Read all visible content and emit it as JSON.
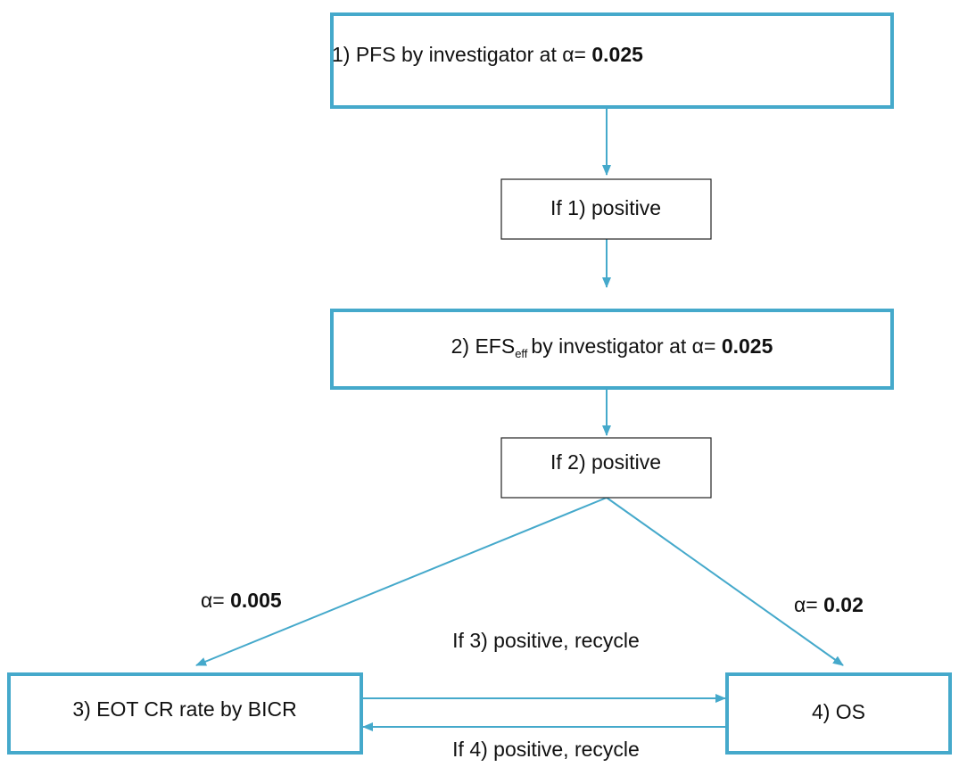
{
  "nodes": [
    {
      "text": "1) PFS by investigator at α=",
      "alpha": "0.025"
    },
    {
      "text": "If 1) positive"
    },
    {
      "text": "2) EFS",
      "subscript": "eff",
      "text_after": "by investigator at α=",
      "alpha": "0.025"
    },
    {
      "text": "If 2) positive"
    },
    {
      "text": "3) EOT CR rate by BICR"
    },
    {
      "text": "4) OS"
    }
  ],
  "edges": [
    {
      "text": "α=",
      "alpha": "0.005"
    },
    {
      "text": "α=",
      "alpha": "0.02"
    },
    {
      "text": "If 3) positive, recycle"
    },
    {
      "text": "If 4) positive, recycle"
    }
  ]
}
